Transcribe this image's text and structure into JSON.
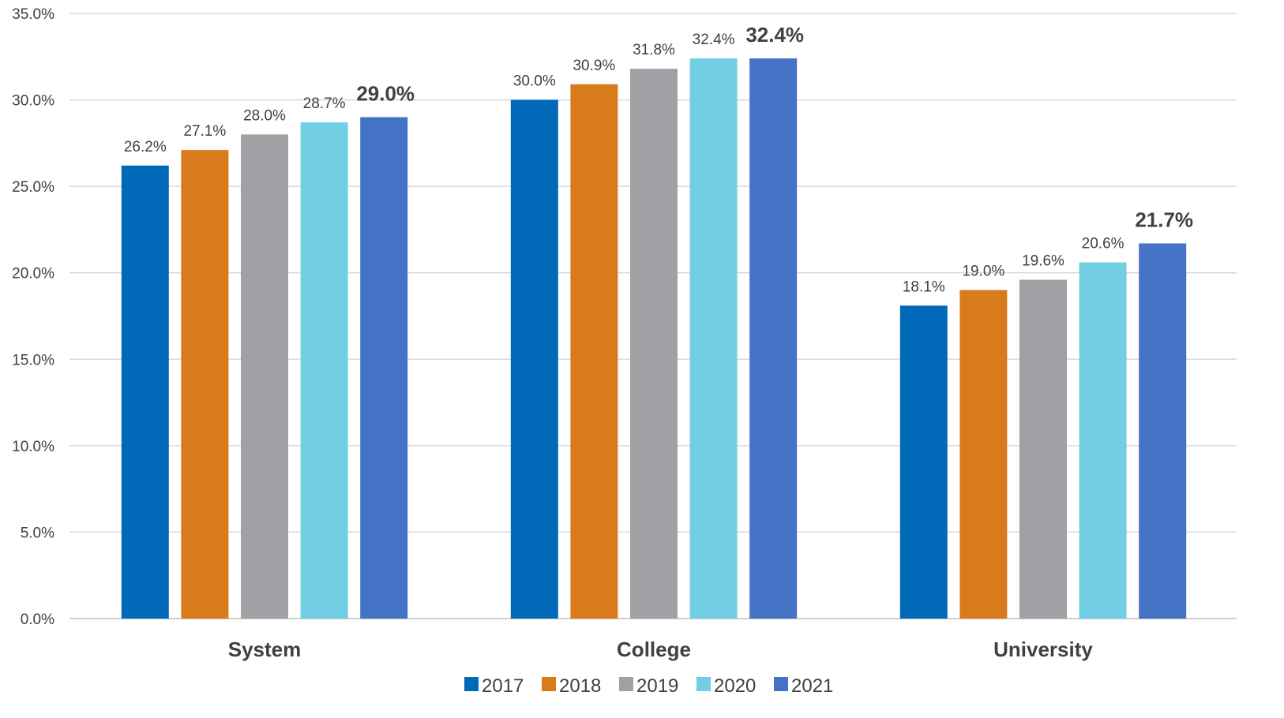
{
  "chart_data": {
    "type": "bar",
    "categories": [
      "System",
      "College",
      "University"
    ],
    "series": [
      {
        "name": "2017",
        "values": [
          26.2,
          30.0,
          18.1
        ],
        "color": "#006ab9"
      },
      {
        "name": "2018",
        "values": [
          27.1,
          30.9,
          19.0
        ],
        "color": "#d97b1b"
      },
      {
        "name": "2019",
        "values": [
          28.0,
          31.8,
          19.6
        ],
        "color": "#a0a1a5"
      },
      {
        "name": "2020",
        "values": [
          28.7,
          32.4,
          20.6
        ],
        "color": "#72cee2"
      },
      {
        "name": "2021",
        "values": [
          29.0,
          32.4,
          21.7
        ],
        "color": "#4472c4"
      }
    ],
    "data_labels": [
      [
        "26.2%",
        "30.0%",
        "18.1%"
      ],
      [
        "27.1%",
        "30.9%",
        "19.0%"
      ],
      [
        "28.0%",
        "31.8%",
        "19.6%"
      ],
      [
        "28.7%",
        "32.4%",
        "20.6%"
      ],
      [
        "29.0%",
        "32.4%",
        "21.7%"
      ]
    ],
    "emphasized_series": "2021",
    "yticks": [
      "0.0%",
      "5.0%",
      "10.0%",
      "15.0%",
      "20.0%",
      "25.0%",
      "30.0%",
      "35.0%"
    ],
    "ylim": [
      0,
      35
    ],
    "title": "",
    "xlabel": "",
    "ylabel": "",
    "grid": true,
    "legend_position": "bottom"
  }
}
